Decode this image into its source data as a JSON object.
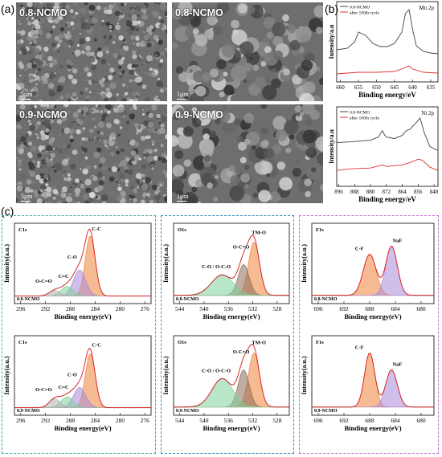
{
  "panel_a": {
    "letter": "(a)",
    "images": [
      {
        "label": "0.8-NCMO",
        "scale": "5μm"
      },
      {
        "label": "0.8-NCMO",
        "scale": "1μm"
      },
      {
        "label": "0.9-NCMO",
        "scale": "5μm"
      },
      {
        "label": "0.9-NCMO",
        "scale": "1μm"
      }
    ]
  },
  "panel_b": {
    "letter": "(b)",
    "ylabel": "Intensity/a.u",
    "xlabel": "Binding energy/eV",
    "legend": [
      "0.8-NCMO",
      "after 100th cycle"
    ],
    "colors": {
      "pristine": "#444444",
      "cycled": "#e03030"
    }
  },
  "panel_c": {
    "letter": "(c)",
    "ylabel": "Intensity(a.u.)",
    "xlabel": "Binding energy(eV)",
    "box_colors": {
      "c1s": "#3aa9a5",
      "o1s": "#2f86b9",
      "f1s": "#c46bd0"
    },
    "peak_colors": {
      "purple": "#a98ad8",
      "green": "#7fcf9a",
      "orange": "#f0833a",
      "brown": "#8a6b5a",
      "gray": "#b0b0b0"
    }
  },
  "chart_data": [
    {
      "type": "line",
      "title": "Mn 2p",
      "xlabel": "Binding energy/eV",
      "ylabel": "Intensity/a.u",
      "x_ticks": [
        660,
        655,
        650,
        645,
        640,
        635
      ],
      "xlim": [
        661,
        633
      ],
      "series": [
        {
          "name": "0.8-NCMO",
          "x": [
            661,
            658,
            656,
            655,
            653,
            651,
            649,
            647,
            645,
            643,
            642,
            641,
            640,
            639,
            637,
            635,
            633
          ],
          "y": [
            0.4,
            0.42,
            0.5,
            0.62,
            0.58,
            0.48,
            0.44,
            0.44,
            0.48,
            0.62,
            0.85,
            0.9,
            0.65,
            0.45,
            0.38,
            0.36,
            0.35
          ]
        },
        {
          "name": "after 100th cycle",
          "x": [
            661,
            655,
            650,
            645,
            642,
            641,
            640,
            637,
            633
          ],
          "y": [
            0.1,
            0.12,
            0.12,
            0.13,
            0.18,
            0.2,
            0.16,
            0.12,
            0.11
          ]
        }
      ]
    },
    {
      "type": "line",
      "title": "Ni 2p",
      "xlabel": "Binding energy/eV",
      "ylabel": "Intensity/a.u",
      "x_ticks": [
        896,
        888,
        880,
        872,
        864,
        856,
        848
      ],
      "xlim": [
        897,
        846
      ],
      "series": [
        {
          "name": "0.8-NCMO",
          "x": [
            897,
            890,
            885,
            880,
            878,
            876,
            874,
            873,
            872,
            868,
            864,
            862,
            860,
            857,
            855,
            853,
            850,
            846
          ],
          "y": [
            0.55,
            0.56,
            0.57,
            0.58,
            0.6,
            0.62,
            0.7,
            0.65,
            0.62,
            0.6,
            0.64,
            0.7,
            0.72,
            0.8,
            0.86,
            0.68,
            0.5,
            0.45
          ]
        },
        {
          "name": "after 100th cycle",
          "x": [
            897,
            890,
            880,
            874,
            872,
            864,
            860,
            856,
            854,
            850,
            846
          ],
          "y": [
            0.2,
            0.22,
            0.23,
            0.27,
            0.25,
            0.27,
            0.3,
            0.34,
            0.33,
            0.24,
            0.2
          ]
        }
      ]
    },
    {
      "type": "area",
      "title": "C1s",
      "sample": "0.8-NCMO",
      "x_ticks": [
        296,
        292,
        288,
        284,
        280,
        276
      ],
      "xlim": [
        297,
        275
      ],
      "peaks": [
        {
          "label": "C-C",
          "center": 284.8
        },
        {
          "label": "C-O",
          "center": 286.5
        },
        {
          "label": "C=C",
          "center": 288.5
        },
        {
          "label": "O-C=O",
          "center": 290.5
        }
      ]
    },
    {
      "type": "area",
      "title": "C1s",
      "sample": "0.9-NCMO",
      "x_ticks": [
        296,
        292,
        288,
        284,
        280,
        276
      ],
      "xlim": [
        297,
        275
      ],
      "peaks": [
        {
          "label": "C-C",
          "center": 284.8
        },
        {
          "label": "C-O",
          "center": 286.5
        },
        {
          "label": "C=C",
          "center": 288.5
        },
        {
          "label": "O-C=O",
          "center": 290.5
        }
      ]
    },
    {
      "type": "area",
      "title": "O1s",
      "sample": "0.8-NCMO",
      "x_ticks": [
        544,
        540,
        536,
        532,
        528
      ],
      "xlim": [
        545,
        526
      ],
      "peaks": [
        {
          "label": "TM-O",
          "center": 531.8
        },
        {
          "label": "O-C=O",
          "center": 533.5
        },
        {
          "label": "C-O / O-C-O",
          "center": 537.0
        }
      ]
    },
    {
      "type": "area",
      "title": "O1s",
      "sample": "0.9-NCMO",
      "x_ticks": [
        544,
        540,
        536,
        532,
        528
      ],
      "xlim": [
        545,
        526
      ],
      "peaks": [
        {
          "label": "TM-O",
          "center": 531.8
        },
        {
          "label": "O-C=O",
          "center": 533.5
        },
        {
          "label": "C-O / O-C-O",
          "center": 537.0
        }
      ]
    },
    {
      "type": "area",
      "title": "F1s",
      "sample": "0.8-NCMO",
      "x_ticks": [
        696,
        692,
        688,
        684,
        680
      ],
      "xlim": [
        697,
        678
      ],
      "peaks": [
        {
          "label": "C-F",
          "center": 688.0
        },
        {
          "label": "NaF",
          "center": 684.6
        }
      ]
    },
    {
      "type": "area",
      "title": "F1s",
      "sample": "0.9-NCMO",
      "x_ticks": [
        696,
        692,
        688,
        684,
        680
      ],
      "xlim": [
        697,
        678
      ],
      "peaks": [
        {
          "label": "C-F",
          "center": 688.0
        },
        {
          "label": "NaF",
          "center": 684.6
        }
      ]
    }
  ]
}
